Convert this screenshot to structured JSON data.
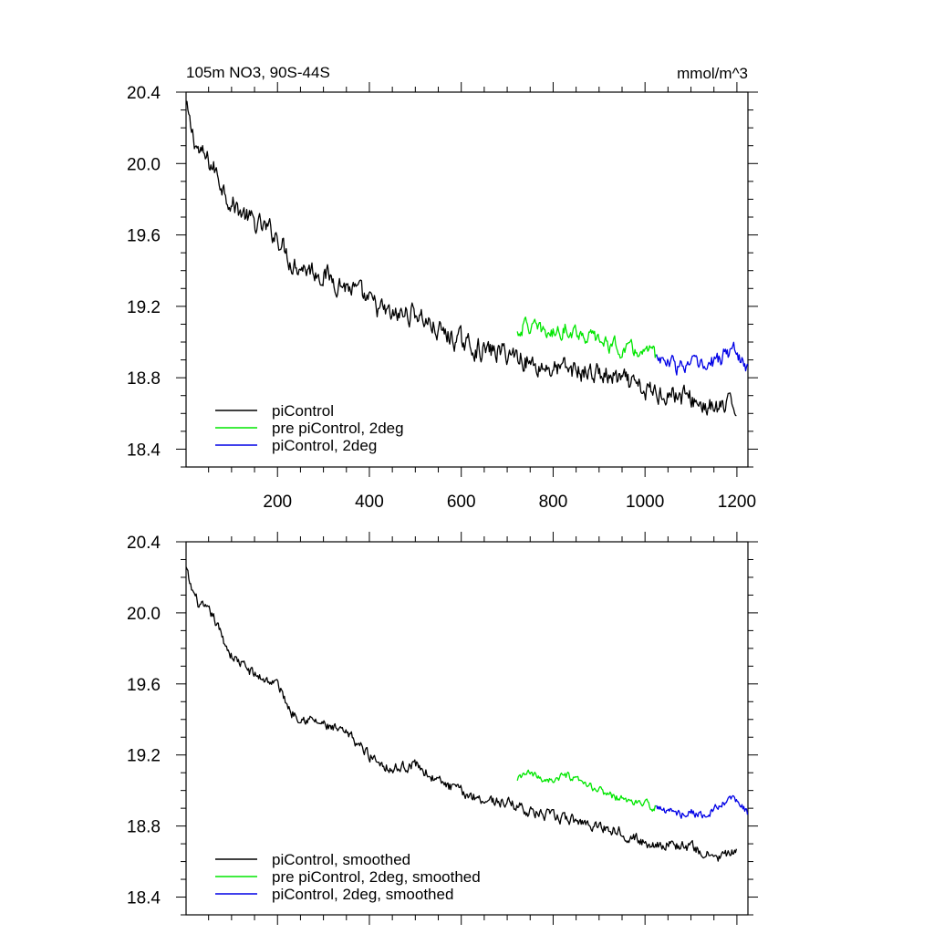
{
  "chart_data": [
    {
      "type": "line",
      "title": "105m NO3, 90S-44S",
      "units": "mmol/m^3",
      "xlabel": "",
      "ylabel": "",
      "xlim": [
        1,
        1224
      ],
      "ylim": [
        18.3,
        20.4
      ],
      "xticks": [
        200,
        400,
        600,
        800,
        1000,
        1200
      ],
      "xtick_labels": [
        "200",
        "400",
        "600",
        "800",
        "1000",
        "1200"
      ],
      "yticks": [
        18.4,
        18.8,
        19.2,
        19.6,
        20.0,
        20.4
      ],
      "ytick_labels": [
        "18.4",
        "18.8",
        "19.2",
        "19.6",
        "20.0",
        "20.4"
      ],
      "legend_position": "bottom-left",
      "grid": false,
      "series": [
        {
          "name": "piControl",
          "color": "#000000",
          "noise": 0.055,
          "x": [
            1,
            10,
            30,
            60,
            80,
            100,
            150,
            200,
            230,
            300,
            360,
            400,
            450,
            500,
            550,
            600,
            650,
            700,
            730,
            750,
            800,
            850,
            900,
            950,
            1000,
            1050,
            1100,
            1150,
            1200
          ],
          "values": [
            20.32,
            20.2,
            20.06,
            19.98,
            19.88,
            19.78,
            19.66,
            19.6,
            19.45,
            19.38,
            19.3,
            19.22,
            19.14,
            19.17,
            19.06,
            19.0,
            18.95,
            18.94,
            18.92,
            18.88,
            18.85,
            18.84,
            18.82,
            18.78,
            18.72,
            18.72,
            18.68,
            18.62,
            18.64
          ]
        },
        {
          "name": "pre piControl, 2deg",
          "color": "#00e600",
          "noise": 0.04,
          "x": [
            722,
            740,
            770,
            800,
            830,
            860,
            900,
            950,
            1000,
            1025
          ],
          "values": [
            19.05,
            19.1,
            19.06,
            19.05,
            19.08,
            19.05,
            19.01,
            18.96,
            18.94,
            18.92
          ]
        },
        {
          "name": "piControl, 2deg",
          "color": "#0000e6",
          "noise": 0.045,
          "x": [
            1025,
            1050,
            1080,
            1100,
            1130,
            1160,
            1190,
            1224
          ],
          "values": [
            18.92,
            18.88,
            18.86,
            18.88,
            18.85,
            18.9,
            18.96,
            18.87
          ]
        }
      ]
    },
    {
      "type": "line",
      "title": "",
      "xlim": [
        1,
        1224
      ],
      "ylim": [
        18.3,
        20.4
      ],
      "xticks": [
        200,
        400,
        600,
        800,
        1000,
        1200
      ],
      "yticks": [
        18.4,
        18.8,
        19.2,
        19.6,
        20.0,
        20.4
      ],
      "ytick_labels": [
        "18.4",
        "18.8",
        "19.2",
        "19.6",
        "20.0",
        "20.4"
      ],
      "legend_position": "bottom-left",
      "grid": false,
      "series": [
        {
          "name": "piControl, smoothed",
          "color": "#000000",
          "noise": 0.028,
          "x": [
            1,
            10,
            30,
            60,
            80,
            100,
            150,
            200,
            230,
            300,
            360,
            400,
            450,
            500,
            550,
            600,
            650,
            700,
            730,
            750,
            800,
            850,
            900,
            950,
            1000,
            1050,
            1100,
            1150,
            1200
          ],
          "values": [
            20.25,
            20.15,
            20.04,
            19.98,
            19.86,
            19.76,
            19.65,
            19.6,
            19.44,
            19.37,
            19.3,
            19.2,
            19.12,
            19.15,
            19.05,
            18.99,
            18.95,
            18.93,
            18.91,
            18.88,
            18.85,
            18.83,
            18.8,
            18.77,
            18.7,
            18.7,
            18.68,
            18.62,
            18.65
          ]
        },
        {
          "name": "pre piControl, 2deg, smoothed",
          "color": "#00e600",
          "noise": 0.02,
          "x": [
            722,
            740,
            770,
            800,
            830,
            860,
            900,
            950,
            1000,
            1025
          ],
          "values": [
            19.05,
            19.1,
            19.07,
            19.06,
            19.08,
            19.04,
            19.0,
            18.95,
            18.92,
            18.91
          ]
        },
        {
          "name": "piControl, 2deg, smoothed",
          "color": "#0000e6",
          "noise": 0.022,
          "x": [
            1025,
            1050,
            1080,
            1100,
            1130,
            1160,
            1190,
            1224
          ],
          "values": [
            18.91,
            18.88,
            18.87,
            18.88,
            18.86,
            18.9,
            18.96,
            18.87
          ]
        }
      ]
    }
  ]
}
